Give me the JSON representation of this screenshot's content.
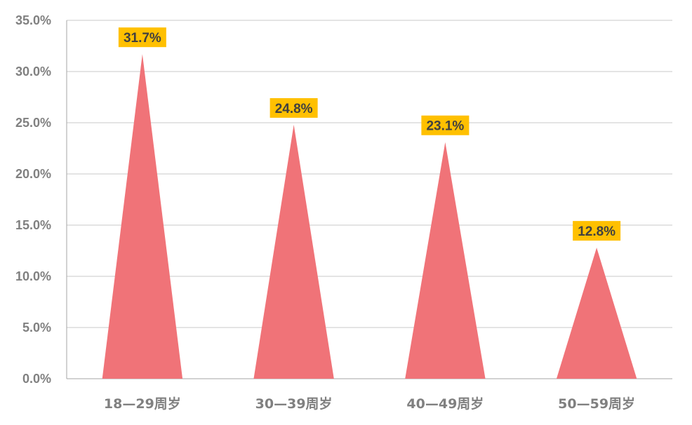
{
  "chart_data": {
    "type": "bar",
    "bar_shape": "triangle",
    "categories": [
      "18—29周岁",
      "30—39周岁",
      "40—49周岁",
      "50—59周岁"
    ],
    "values": [
      31.7,
      24.8,
      23.1,
      12.8
    ],
    "data_labels": [
      "31.7%",
      "24.8%",
      "23.1%",
      "12.8%"
    ],
    "title": "",
    "xlabel": "",
    "ylabel": "",
    "ylim": [
      0,
      35
    ],
    "y_ticks": [
      0,
      5,
      10,
      15,
      20,
      25,
      30,
      35
    ],
    "y_tick_labels": [
      "0.0%",
      "5.0%",
      "10.0%",
      "15.0%",
      "20.0%",
      "25.0%",
      "30.0%",
      "35.0%"
    ],
    "grid": true,
    "legend": "none",
    "colors": {
      "bar": "#F07378",
      "label_background": "#FFC000",
      "label_text": "#404040",
      "axis_text": "#808080",
      "gridline": "#C8C8C8",
      "axis_line": "#A6A6A6"
    }
  }
}
